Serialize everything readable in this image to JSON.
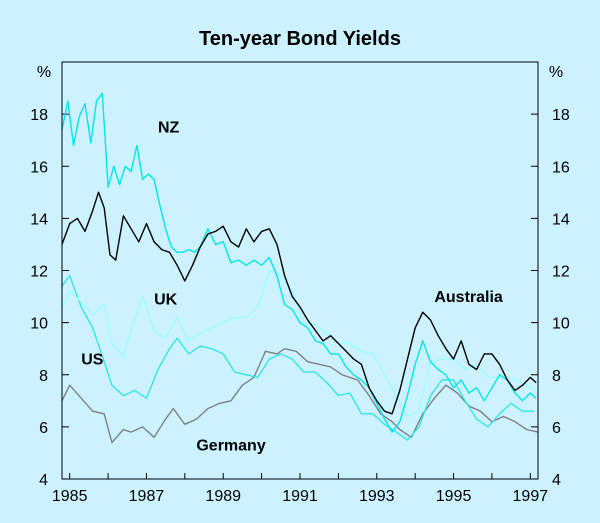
{
  "chart_data": {
    "type": "line",
    "title": "Ten-year Bond Yields",
    "y_unit_left": "%",
    "y_unit_right": "%",
    "ylim": [
      4,
      20
    ],
    "xlim": [
      1984.8,
      1997.2
    ],
    "y_ticks": [
      4,
      6,
      8,
      10,
      12,
      14,
      16,
      18
    ],
    "x_ticks": [
      1985,
      1987,
      1989,
      1991,
      1993,
      1995,
      1997
    ],
    "grid": false,
    "series": [
      {
        "name": "Germany",
        "color": "#808080",
        "x": [
          1984.8,
          1985.0,
          1985.3,
          1985.6,
          1985.9,
          1986.1,
          1986.4,
          1986.6,
          1986.9,
          1987.2,
          1987.5,
          1987.7,
          1988.0,
          1988.3,
          1988.6,
          1988.9,
          1989.2,
          1989.5,
          1989.8,
          1990.1,
          1990.4,
          1990.6,
          1990.9,
          1991.2,
          1991.5,
          1991.8,
          1992.1,
          1992.5,
          1992.8,
          1993.1,
          1993.4,
          1993.6,
          1993.9,
          1994.2,
          1994.5,
          1994.8,
          1995.1,
          1995.4,
          1995.7,
          1996.0,
          1996.3,
          1996.6,
          1996.9,
          1997.2
        ],
        "y": [
          7.0,
          7.6,
          7.1,
          6.6,
          6.5,
          5.4,
          5.9,
          5.8,
          6.0,
          5.6,
          6.3,
          6.7,
          6.1,
          6.3,
          6.7,
          6.9,
          7.0,
          7.6,
          7.9,
          8.9,
          8.8,
          9.0,
          8.9,
          8.5,
          8.4,
          8.3,
          8.0,
          7.8,
          7.2,
          6.5,
          6.2,
          5.9,
          5.6,
          6.5,
          7.1,
          7.6,
          7.3,
          6.8,
          6.6,
          6.2,
          6.4,
          6.2,
          5.9,
          5.8
        ]
      },
      {
        "name": "US",
        "color": "#33e6e6",
        "x": [
          1984.8,
          1985.0,
          1985.3,
          1985.6,
          1985.9,
          1986.1,
          1986.4,
          1986.7,
          1987.0,
          1987.3,
          1987.6,
          1987.8,
          1988.1,
          1988.4,
          1988.7,
          1989.0,
          1989.3,
          1989.6,
          1989.9,
          1990.2,
          1990.5,
          1990.8,
          1991.1,
          1991.4,
          1991.7,
          1992.0,
          1992.3,
          1992.6,
          1992.9,
          1993.2,
          1993.5,
          1993.8,
          1994.1,
          1994.4,
          1994.7,
          1995.0,
          1995.3,
          1995.6,
          1995.9,
          1996.2,
          1996.5,
          1996.8,
          1997.1
        ],
        "y": [
          11.4,
          11.8,
          10.6,
          9.8,
          8.5,
          7.6,
          7.2,
          7.4,
          7.1,
          8.2,
          9.0,
          9.4,
          8.8,
          9.1,
          9.0,
          8.8,
          8.1,
          8.0,
          7.9,
          8.6,
          8.8,
          8.6,
          8.1,
          8.1,
          7.7,
          7.2,
          7.3,
          6.5,
          6.5,
          6.1,
          5.8,
          5.5,
          6.0,
          7.2,
          7.8,
          7.8,
          7.0,
          6.3,
          6.0,
          6.5,
          6.9,
          6.6,
          6.6
        ]
      },
      {
        "name": "UK",
        "color": "#99ffff",
        "x": [
          1984.8,
          1985.0,
          1985.3,
          1985.6,
          1985.9,
          1986.1,
          1986.4,
          1986.6,
          1986.9,
          1987.2,
          1987.5,
          1987.8,
          1988.1,
          1988.4,
          1988.7,
          1989.0,
          1989.3,
          1989.6,
          1989.9,
          1990.2,
          1990.5,
          1990.8,
          1991.1,
          1991.4,
          1991.7,
          1992.0,
          1992.3,
          1992.6,
          1992.9,
          1993.2,
          1993.5,
          1993.8,
          1994.1,
          1994.4,
          1994.7,
          1995.0,
          1995.3,
          1995.6,
          1995.9,
          1996.2,
          1996.5,
          1996.8,
          1997.1
        ],
        "y": [
          10.6,
          11.2,
          10.8,
          10.3,
          10.7,
          9.2,
          8.7,
          9.7,
          11.0,
          9.7,
          9.4,
          10.2,
          9.3,
          9.6,
          9.8,
          10.0,
          10.2,
          10.2,
          10.6,
          12.0,
          11.8,
          11.2,
          10.0,
          9.9,
          9.6,
          9.2,
          9.2,
          8.9,
          8.8,
          8.0,
          7.2,
          6.4,
          6.6,
          8.5,
          8.6,
          8.6,
          8.2,
          8.4,
          7.9,
          7.9,
          7.9,
          7.7,
          7.4
        ]
      },
      {
        "name": "NZ",
        "color": "#00e5ee",
        "x": [
          1984.8,
          1984.95,
          1985.1,
          1985.25,
          1985.4,
          1985.55,
          1985.7,
          1985.85,
          1986.0,
          1986.15,
          1986.3,
          1986.45,
          1986.6,
          1986.75,
          1986.9,
          1987.05,
          1987.2,
          1987.35,
          1987.5,
          1987.65,
          1987.8,
          1987.95,
          1988.1,
          1988.25,
          1988.4,
          1988.6,
          1988.8,
          1989.0,
          1989.2,
          1989.4,
          1989.6,
          1989.8,
          1990.0,
          1990.2,
          1990.4,
          1990.6,
          1990.8,
          1991.0,
          1991.2,
          1991.4,
          1991.6,
          1991.8,
          1992.0,
          1992.2,
          1992.4,
          1992.6,
          1992.8,
          1993.0,
          1993.2,
          1993.4,
          1993.6,
          1993.8,
          1994.0,
          1994.2,
          1994.4,
          1994.6,
          1994.8,
          1995.0,
          1995.2,
          1995.4,
          1995.6,
          1995.8,
          1996.0,
          1996.2,
          1996.4,
          1996.6,
          1996.8,
          1997.0,
          1997.15
        ],
        "y": [
          17.4,
          18.5,
          16.8,
          17.9,
          18.4,
          16.9,
          18.5,
          18.8,
          15.2,
          16.0,
          15.3,
          16.0,
          15.8,
          16.8,
          15.5,
          15.7,
          15.5,
          14.5,
          13.6,
          12.9,
          12.7,
          12.7,
          12.8,
          12.7,
          12.9,
          13.6,
          13.0,
          13.1,
          12.3,
          12.4,
          12.2,
          12.4,
          12.2,
          12.5,
          11.8,
          10.7,
          10.5,
          10.0,
          9.8,
          9.3,
          9.2,
          8.8,
          8.8,
          8.3,
          8.0,
          7.8,
          7.5,
          6.9,
          6.3,
          5.8,
          6.2,
          7.2,
          8.4,
          9.3,
          8.5,
          8.2,
          8.0,
          7.5,
          7.8,
          7.3,
          7.5,
          7.0,
          7.5,
          8.0,
          7.8,
          7.3,
          7.0,
          7.3,
          7.1
        ]
      },
      {
        "name": "Australia",
        "color": "#000000",
        "x": [
          1984.8,
          1985.0,
          1985.2,
          1985.4,
          1985.6,
          1985.75,
          1985.9,
          1986.05,
          1986.2,
          1986.4,
          1986.6,
          1986.8,
          1987.0,
          1987.2,
          1987.4,
          1987.6,
          1987.8,
          1988.0,
          1988.2,
          1988.4,
          1988.6,
          1988.8,
          1989.0,
          1989.2,
          1989.4,
          1989.6,
          1989.8,
          1990.0,
          1990.2,
          1990.4,
          1990.6,
          1990.8,
          1991.0,
          1991.2,
          1991.4,
          1991.6,
          1991.8,
          1992.0,
          1992.2,
          1992.4,
          1992.6,
          1992.8,
          1993.0,
          1993.2,
          1993.4,
          1993.6,
          1993.8,
          1994.0,
          1994.2,
          1994.4,
          1994.6,
          1994.8,
          1995.0,
          1995.2,
          1995.4,
          1995.6,
          1995.8,
          1996.0,
          1996.2,
          1996.4,
          1996.6,
          1996.8,
          1997.0,
          1997.15
        ],
        "y": [
          13.0,
          13.8,
          14.0,
          13.5,
          14.3,
          15.0,
          14.4,
          12.6,
          12.4,
          14.1,
          13.6,
          13.1,
          13.8,
          13.1,
          12.8,
          12.7,
          12.2,
          11.6,
          12.2,
          12.9,
          13.4,
          13.5,
          13.7,
          13.1,
          12.9,
          13.6,
          13.1,
          13.5,
          13.6,
          13.0,
          11.8,
          11.0,
          10.6,
          10.1,
          9.7,
          9.3,
          9.5,
          9.2,
          8.9,
          8.6,
          8.4,
          7.5,
          7.0,
          6.6,
          6.5,
          7.4,
          8.6,
          9.8,
          10.4,
          10.1,
          9.5,
          9.0,
          8.6,
          9.3,
          8.4,
          8.2,
          8.8,
          8.8,
          8.4,
          7.8,
          7.4,
          7.6,
          7.9,
          7.7
        ]
      }
    ],
    "annotations": [
      {
        "text": "NZ",
        "x": 1987.3,
        "y": 17.3
      },
      {
        "text": "UK",
        "x": 1987.2,
        "y": 10.7
      },
      {
        "text": "US",
        "x": 1985.3,
        "y": 8.4
      },
      {
        "text": "Germany",
        "x": 1988.3,
        "y": 5.1
      },
      {
        "text": "Australia",
        "x": 1994.5,
        "y": 10.8
      }
    ]
  }
}
